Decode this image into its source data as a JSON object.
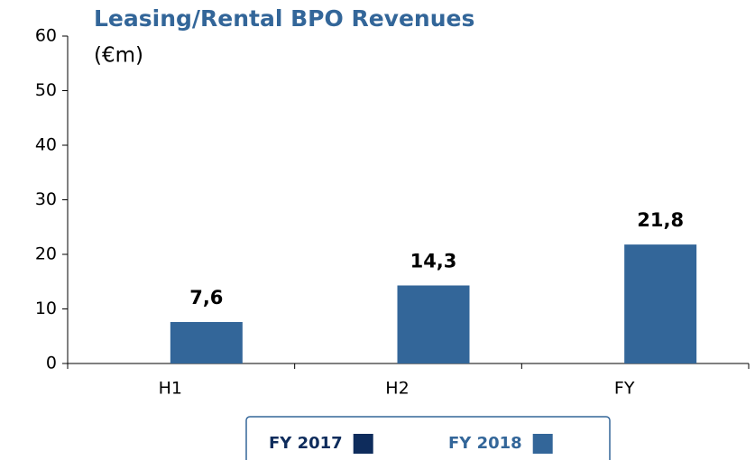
{
  "chart_data": {
    "type": "bar",
    "title": "Leasing/Rental BPO Revenues",
    "subtitle": "(€m)",
    "categories": [
      "H1",
      "H2",
      "FY"
    ],
    "series": [
      {
        "name": "FY 2017",
        "color": "#0e2c5c",
        "values": [
          null,
          null,
          null
        ]
      },
      {
        "name": "FY 2018",
        "color": "#336699",
        "values": [
          7.6,
          14.3,
          21.8
        ],
        "value_labels": [
          "7,6",
          "14,3",
          "21,8"
        ]
      }
    ],
    "ylim": [
      0,
      60
    ],
    "yticks": [
      0,
      10,
      20,
      30,
      40,
      50,
      60
    ],
    "legend": "bottom"
  }
}
